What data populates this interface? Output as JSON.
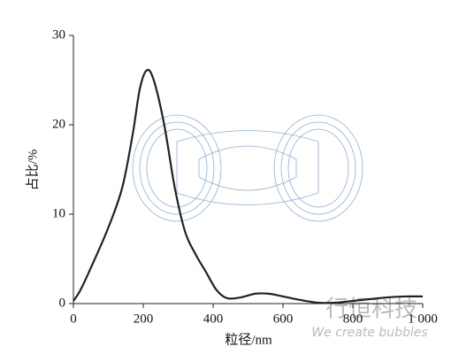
{
  "chart_data": {
    "type": "line",
    "xlabel": "粒径/nm",
    "ylabel": "占比/%",
    "annotations": [
      "行恒科技",
      "We create bubbles"
    ],
    "x": [
      0,
      20,
      50,
      100,
      140,
      170,
      190,
      210,
      230,
      260,
      290,
      320,
      350,
      380,
      410,
      440,
      480,
      520,
      560,
      600,
      650,
      700,
      750,
      800,
      850,
      900,
      950,
      1000
    ],
    "series": [
      {
        "name": "占比",
        "color": "#222222",
        "values": [
          0.3,
          1.5,
          4,
          8.5,
          13,
          19,
          24,
          26.1,
          25,
          20,
          13,
          8,
          5.5,
          3.5,
          1.5,
          0.6,
          0.7,
          1.1,
          1.1,
          0.8,
          0.4,
          0.1,
          0.1,
          0.3,
          0.5,
          0.7,
          0.8,
          0.8
        ]
      }
    ],
    "xlim": [
      0,
      1000
    ],
    "xticks": [
      0,
      200,
      400,
      600,
      800,
      {
        "value": 1000,
        "label": "1 000"
      }
    ],
    "ylim": [
      0,
      30
    ],
    "yticks": [
      0,
      10,
      20,
      30
    ]
  }
}
